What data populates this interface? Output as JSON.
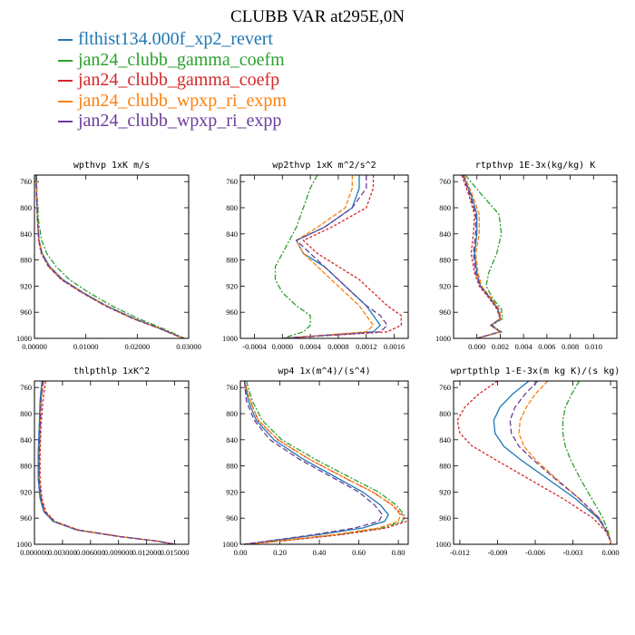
{
  "figure": {
    "title": "CLUBB VAR at295E,0N"
  },
  "legend": [
    {
      "name": "flthist134.000f_xp2_revert",
      "color": "#1f77b4"
    },
    {
      "name": "jan24_clubb_gamma_coefm",
      "color": "#2ca02c"
    },
    {
      "name": "jan24_clubb_gamma_coefp",
      "color": "#d62728"
    },
    {
      "name": "jan24_clubb_wpxp_ri_expm",
      "color": "#ff7f0e"
    },
    {
      "name": "jan24_clubb_wpxp_ri_expp",
      "color": "#6a3d9a"
    }
  ],
  "chart_data": [
    {
      "type": "line",
      "title": "wpthvp  1xK m/s",
      "xlim": [
        0,
        0.03
      ],
      "ylim": [
        1000,
        750
      ],
      "xticks": [
        "0.00000",
        "0.01000",
        "0.02000",
        "0.03000"
      ],
      "xtick_values": [
        0,
        0.01,
        0.02,
        0.03
      ],
      "yticks": [
        760,
        800,
        840,
        880,
        920,
        960,
        1000
      ],
      "y": [
        750,
        780,
        820,
        850,
        870,
        890,
        910,
        930,
        950,
        970,
        985,
        1000
      ],
      "series": [
        {
          "name": "flthist134.000f_xp2_revert",
          "x": [
            0.0003,
            0.0004,
            0.0006,
            0.0009,
            0.0015,
            0.003,
            0.0055,
            0.0095,
            0.014,
            0.0195,
            0.0245,
            0.029
          ]
        },
        {
          "name": "jan24_clubb_gamma_coefm",
          "x": [
            0.0004,
            0.0005,
            0.0008,
            0.0014,
            0.0024,
            0.0042,
            0.0068,
            0.0106,
            0.015,
            0.0203,
            0.025,
            0.0292
          ]
        },
        {
          "name": "jan24_clubb_gamma_coefp",
          "x": [
            0.0003,
            0.0004,
            0.0006,
            0.0008,
            0.0013,
            0.0027,
            0.0052,
            0.0092,
            0.0137,
            0.0192,
            0.0243,
            0.0289
          ]
        },
        {
          "name": "jan24_clubb_wpxp_ri_expm",
          "x": [
            0.0003,
            0.0004,
            0.0006,
            0.0009,
            0.0014,
            0.0029,
            0.0054,
            0.0094,
            0.0139,
            0.0194,
            0.0244,
            0.029
          ]
        },
        {
          "name": "jan24_clubb_wpxp_ri_expp",
          "x": [
            0.0003,
            0.0004,
            0.0006,
            0.0009,
            0.0014,
            0.0028,
            0.0053,
            0.0093,
            0.0138,
            0.0193,
            0.0244,
            0.0289
          ]
        }
      ]
    },
    {
      "type": "line",
      "title": "wp2thvp  1xK m^2/s^2",
      "xlim": [
        -0.0006,
        0.0018
      ],
      "ylim": [
        1000,
        750
      ],
      "xticks": [
        "-0.0004",
        "0.0000",
        "0.0004",
        "0.0008",
        "0.0012",
        "0.0016"
      ],
      "xtick_values": [
        -0.0004,
        0,
        0.0004,
        0.0008,
        0.0012,
        0.0016
      ],
      "yticks": [
        760,
        800,
        840,
        880,
        920,
        960,
        1000
      ],
      "y": [
        750,
        770,
        800,
        830,
        850,
        870,
        890,
        910,
        930,
        950,
        965,
        980,
        990,
        1000
      ],
      "series": [
        {
          "name": "flthist134.000f_xp2_revert",
          "x": [
            0.0011,
            0.0011,
            0.001,
            0.0006,
            0.0002,
            0.0003,
            0.0006,
            0.0008,
            0.001,
            0.0012,
            0.0013,
            0.0014,
            0.0013,
            0.0
          ]
        },
        {
          "name": "jan24_clubb_gamma_coefm",
          "x": [
            0.0005,
            0.0004,
            0.0003,
            0.0002,
            0.0001,
            0.0,
            -0.0001,
            -0.0001,
            0.0,
            0.0002,
            0.0004,
            0.0004,
            0.0003,
            0.0
          ]
        },
        {
          "name": "jan24_clubb_gamma_coefp",
          "x": [
            0.0013,
            0.0013,
            0.0012,
            0.0007,
            0.0003,
            0.0005,
            0.0008,
            0.0011,
            0.0013,
            0.0015,
            0.0017,
            0.0017,
            0.0015,
            0.0
          ]
        },
        {
          "name": "jan24_clubb_wpxp_ri_expm",
          "x": [
            0.001,
            0.001,
            0.0009,
            0.0005,
            0.0002,
            0.0003,
            0.0005,
            0.0007,
            0.0009,
            0.0011,
            0.0012,
            0.0013,
            0.0012,
            0.0
          ]
        },
        {
          "name": "jan24_clubb_wpxp_ri_expp",
          "x": [
            0.0012,
            0.0012,
            0.001,
            0.0006,
            0.0002,
            0.0004,
            0.0006,
            0.0008,
            0.001,
            0.0012,
            0.0014,
            0.0015,
            0.0014,
            0.0
          ]
        }
      ]
    },
    {
      "type": "line",
      "title": "rtpthvp  1E-3x(kg/kg) K",
      "xlim": [
        -0.002,
        0.012
      ],
      "ylim": [
        1000,
        750
      ],
      "xticks": [
        "0.000",
        "0.002",
        "0.004",
        "0.006",
        "0.008",
        "0.010"
      ],
      "xtick_values": [
        0,
        0.002,
        0.004,
        0.006,
        0.008,
        0.01
      ],
      "yticks": [
        760,
        800,
        840,
        880,
        920,
        960,
        1000
      ],
      "y": [
        750,
        780,
        810,
        840,
        870,
        900,
        920,
        940,
        955,
        970,
        980,
        990,
        1000
      ],
      "series": [
        {
          "name": "flthist134.000f_xp2_revert",
          "x": [
            -0.0012,
            -0.0005,
            0.0,
            0.0,
            -0.0002,
            0.0,
            0.0003,
            0.0012,
            0.0018,
            0.002,
            0.0012,
            0.002,
            0.0
          ]
        },
        {
          "name": "jan24_clubb_gamma_coefm",
          "x": [
            -0.001,
            0.0004,
            0.0019,
            0.0021,
            0.0017,
            0.001,
            0.0008,
            0.0014,
            0.0021,
            0.0022,
            0.0013,
            0.0021,
            0.0
          ]
        },
        {
          "name": "jan24_clubb_gamma_coefp",
          "x": [
            -0.0013,
            -0.0007,
            -0.0002,
            -0.0003,
            -0.0005,
            -0.0002,
            0.0002,
            0.0011,
            0.0017,
            0.002,
            0.0012,
            0.002,
            0.0
          ]
        },
        {
          "name": "jan24_clubb_wpxp_ri_expm",
          "x": [
            -0.0011,
            -0.0004,
            0.0002,
            0.0002,
            -0.0001,
            0.0001,
            0.0004,
            0.0013,
            0.0019,
            0.0021,
            0.0012,
            0.002,
            0.0
          ]
        },
        {
          "name": "jan24_clubb_wpxp_ri_expp",
          "x": [
            -0.0012,
            -0.0006,
            -0.0001,
            -0.0001,
            -0.0003,
            -0.0001,
            0.0003,
            0.0012,
            0.0018,
            0.002,
            0.0012,
            0.002,
            0.0
          ]
        }
      ]
    },
    {
      "type": "line",
      "title": "thlpthlp  1xK^2",
      "xlim": [
        0,
        0.0165
      ],
      "ylim": [
        1000,
        750
      ],
      "xticks": [
        "0.000000",
        "0.003000",
        "0.006000",
        "0.009000",
        "0.012000",
        "0.015000"
      ],
      "xtick_values": [
        0,
        0.003,
        0.006,
        0.009,
        0.012,
        0.015
      ],
      "yticks": [
        760,
        800,
        840,
        880,
        920,
        960,
        1000
      ],
      "y": [
        750,
        780,
        820,
        860,
        900,
        930,
        950,
        965,
        978,
        988,
        995,
        1000
      ],
      "series": [
        {
          "name": "flthist134.000f_xp2_revert",
          "x": [
            0.0008,
            0.0006,
            0.0005,
            0.0004,
            0.0004,
            0.0006,
            0.001,
            0.002,
            0.0045,
            0.009,
            0.013,
            0.015
          ]
        },
        {
          "name": "jan24_clubb_gamma_coefm",
          "x": [
            0.0009,
            0.0007,
            0.0006,
            0.0005,
            0.0005,
            0.0007,
            0.0011,
            0.0021,
            0.0046,
            0.0091,
            0.0131,
            0.015
          ]
        },
        {
          "name": "jan24_clubb_gamma_coefp",
          "x": [
            0.0012,
            0.0009,
            0.0007,
            0.0006,
            0.0006,
            0.0008,
            0.0012,
            0.0022,
            0.0047,
            0.0092,
            0.0131,
            0.0151
          ]
        },
        {
          "name": "jan24_clubb_wpxp_ri_expm",
          "x": [
            0.001,
            0.0007,
            0.0006,
            0.0005,
            0.0005,
            0.0007,
            0.0011,
            0.0021,
            0.0046,
            0.0091,
            0.013,
            0.015
          ]
        },
        {
          "name": "jan24_clubb_wpxp_ri_expp",
          "x": [
            0.0009,
            0.0007,
            0.0006,
            0.0005,
            0.0005,
            0.0007,
            0.0011,
            0.0021,
            0.0046,
            0.009,
            0.013,
            0.015
          ]
        }
      ]
    },
    {
      "type": "line",
      "title": "wp4  1x(m^4)/(s^4)",
      "xlim": [
        0,
        0.85
      ],
      "ylim": [
        1000,
        750
      ],
      "xticks": [
        "0.00",
        "0.20",
        "0.40",
        "0.60",
        "0.80"
      ],
      "xtick_values": [
        0,
        0.2,
        0.4,
        0.6,
        0.8
      ],
      "yticks": [
        760,
        800,
        840,
        880,
        920,
        960,
        1000
      ],
      "y": [
        750,
        780,
        810,
        840,
        870,
        900,
        920,
        940,
        955,
        965,
        975,
        985,
        995,
        1000
      ],
      "series": [
        {
          "name": "flthist134.000f_xp2_revert",
          "x": [
            0.02,
            0.04,
            0.08,
            0.17,
            0.32,
            0.5,
            0.62,
            0.71,
            0.75,
            0.73,
            0.62,
            0.4,
            0.15,
            0.02
          ]
        },
        {
          "name": "jan24_clubb_gamma_coefm",
          "x": [
            0.03,
            0.06,
            0.11,
            0.21,
            0.38,
            0.57,
            0.7,
            0.79,
            0.83,
            0.82,
            0.72,
            0.5,
            0.2,
            0.02
          ]
        },
        {
          "name": "jan24_clubb_gamma_coefp",
          "x": [
            0.02,
            0.05,
            0.09,
            0.19,
            0.35,
            0.54,
            0.67,
            0.77,
            0.82,
            0.84,
            0.74,
            0.52,
            0.21,
            0.02
          ]
        },
        {
          "name": "jan24_clubb_wpxp_ri_expm",
          "x": [
            0.02,
            0.05,
            0.09,
            0.19,
            0.35,
            0.54,
            0.67,
            0.77,
            0.81,
            0.8,
            0.7,
            0.48,
            0.19,
            0.02
          ]
        },
        {
          "name": "jan24_clubb_wpxp_ri_expp",
          "x": [
            0.02,
            0.03,
            0.07,
            0.15,
            0.3,
            0.48,
            0.6,
            0.68,
            0.72,
            0.7,
            0.58,
            0.38,
            0.14,
            0.02
          ]
        }
      ]
    },
    {
      "type": "line",
      "title": "wprtpthlp  1-E-3x(m kg K)/(s kg)",
      "xlim": [
        -0.0125,
        0.0005
      ],
      "ylim": [
        1000,
        750
      ],
      "xticks": [
        "-0.012",
        "-0.009",
        "-0.006",
        "-0.003",
        "0.000"
      ],
      "xtick_values": [
        -0.012,
        -0.009,
        -0.006,
        -0.003,
        0
      ],
      "yticks": [
        760,
        800,
        840,
        880,
        920,
        960,
        1000
      ],
      "y": [
        750,
        770,
        790,
        810,
        830,
        850,
        870,
        900,
        930,
        960,
        980,
        995,
        1000
      ],
      "series": [
        {
          "name": "flthist134.000f_xp2_revert",
          "x": [
            -0.0065,
            -0.0078,
            -0.0088,
            -0.0093,
            -0.0092,
            -0.0085,
            -0.0072,
            -0.005,
            -0.0028,
            -0.001,
            -0.0003,
            0.0,
            0.0
          ]
        },
        {
          "name": "jan24_clubb_gamma_coefm",
          "x": [
            -0.0025,
            -0.0031,
            -0.0036,
            -0.0038,
            -0.0038,
            -0.0036,
            -0.0032,
            -0.0024,
            -0.0015,
            -0.0006,
            -0.0002,
            0.0,
            0.0
          ]
        },
        {
          "name": "jan24_clubb_gamma_coefp",
          "x": [
            -0.009,
            -0.0105,
            -0.0116,
            -0.0122,
            -0.012,
            -0.011,
            -0.0092,
            -0.0065,
            -0.0038,
            -0.0014,
            -0.0004,
            0.0,
            0.0
          ]
        },
        {
          "name": "jan24_clubb_wpxp_ri_expm",
          "x": [
            -0.005,
            -0.006,
            -0.0067,
            -0.0072,
            -0.0073,
            -0.0069,
            -0.006,
            -0.0043,
            -0.0025,
            -0.0009,
            -0.0003,
            0.0,
            0.0
          ]
        },
        {
          "name": "jan24_clubb_wpxp_ri_expp",
          "x": [
            -0.0058,
            -0.0068,
            -0.0076,
            -0.008,
            -0.0079,
            -0.0073,
            -0.0062,
            -0.0044,
            -0.0025,
            -0.0009,
            -0.0003,
            0.0,
            0.0
          ]
        }
      ]
    }
  ]
}
